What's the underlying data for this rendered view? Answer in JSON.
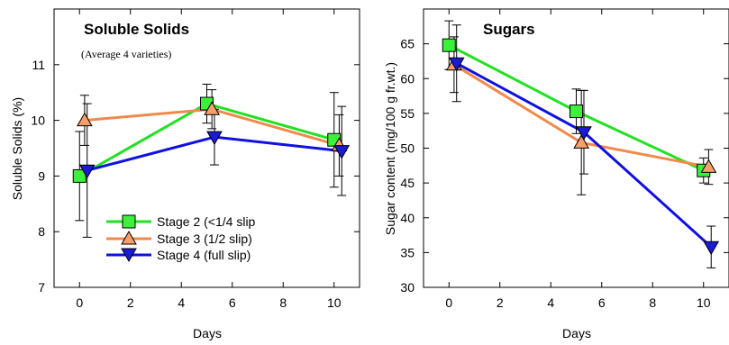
{
  "colors": {
    "stage2": "#22e022",
    "stage3": "#f08a4b",
    "stage4": "#1010e0",
    "marker2": "#3cf03c",
    "marker3": "#f5a06a",
    "marker4": "#1a1ad8",
    "axis": "#000000",
    "errorbar": "#000000"
  },
  "legend": {
    "stage2": "Stage 2 (<1/4 slip",
    "stage3": "Stage 3 (1/2 slip)",
    "stage4": "Stage 4 (full slip)"
  },
  "chart_data": [
    {
      "type": "line",
      "title": "Soluble Solids",
      "subtitle": "(Average 4 varieties)",
      "xlabel": "Days",
      "ylabel": "Soluble Solids (%)",
      "xlim": [
        -1,
        11
      ],
      "ylim": [
        7,
        12
      ],
      "xticks": [
        0,
        2,
        4,
        6,
        8,
        10
      ],
      "yticks": [
        7,
        8,
        9,
        10,
        11
      ],
      "grid": false,
      "legend_position": "bottom-left",
      "series": [
        {
          "key": "stage2",
          "name": "Stage 2 (<1/4 slip",
          "marker": "square",
          "x": [
            0,
            5,
            10
          ],
          "y": [
            9.0,
            10.3,
            9.65
          ],
          "err": [
            0.8,
            0.35,
            0.85
          ]
        },
        {
          "key": "stage3",
          "name": "Stage 3 (1/2 slip)",
          "marker": "triangle-up",
          "x": [
            0.2,
            5.2,
            10.2
          ],
          "y": [
            10.0,
            10.2,
            9.55
          ],
          "err": [
            0.45,
            0.35,
            0.55
          ]
        },
        {
          "key": "stage4",
          "name": "Stage 4 (full slip)",
          "marker": "triangle-down",
          "x": [
            0.3,
            5.3,
            10.3
          ],
          "y": [
            9.1,
            9.7,
            9.45
          ],
          "err": [
            1.2,
            0.5,
            0.8
          ]
        }
      ]
    },
    {
      "type": "line",
      "title": "Sugars",
      "xlabel": "Days",
      "ylabel": "Sugar content (mg/100 g fr.wt.)",
      "xlim": [
        -1,
        11
      ],
      "ylim": [
        30,
        70
      ],
      "xticks": [
        0,
        2,
        4,
        6,
        8,
        10
      ],
      "yticks": [
        30,
        35,
        40,
        45,
        50,
        55,
        60,
        65
      ],
      "grid": false,
      "series": [
        {
          "key": "stage2",
          "name": "Stage 2 (<1/4 slip",
          "marker": "square",
          "x": [
            0,
            5,
            10
          ],
          "y": [
            64.8,
            55.3,
            46.8
          ],
          "err": [
            3.5,
            3.2,
            1.8
          ]
        },
        {
          "key": "stage3",
          "name": "Stage 3 (1/2 slip)",
          "marker": "triangle-up",
          "x": [
            0.2,
            5.2,
            10.2
          ],
          "y": [
            62.0,
            50.8,
            47.3
          ],
          "err": [
            4.0,
            7.5,
            2.5
          ]
        },
        {
          "key": "stage4",
          "name": "Stage 4 (full slip)",
          "marker": "triangle-down",
          "x": [
            0.3,
            5.3,
            10.3
          ],
          "y": [
            62.2,
            52.3,
            35.8
          ],
          "err": [
            5.5,
            6.0,
            3.0
          ]
        }
      ]
    }
  ]
}
